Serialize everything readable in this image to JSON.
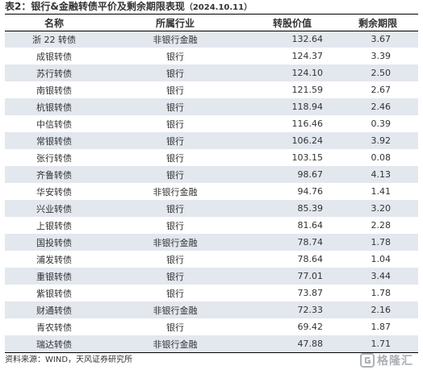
{
  "title": {
    "text": "表2：银行&金融转债平价及剩余期限表现",
    "date": "（2024.10.11）"
  },
  "table": {
    "headers": [
      "名称",
      "所属行业",
      "转股价值",
      "剩余期限"
    ],
    "rows": [
      [
        "浙 22 转债",
        "非银行金融",
        "132.64",
        "3.67"
      ],
      [
        "成银转债",
        "银行",
        "124.37",
        "3.39"
      ],
      [
        "苏行转债",
        "银行",
        "124.10",
        "2.50"
      ],
      [
        "南银转债",
        "银行",
        "121.59",
        "2.67"
      ],
      [
        "杭银转债",
        "银行",
        "118.94",
        "2.46"
      ],
      [
        "中信转债",
        "银行",
        "116.46",
        "0.39"
      ],
      [
        "常银转债",
        "银行",
        "106.24",
        "3.92"
      ],
      [
        "张行转债",
        "银行",
        "103.15",
        "0.08"
      ],
      [
        "齐鲁转债",
        "银行",
        "98.67",
        "4.13"
      ],
      [
        "华安转债",
        "非银行金融",
        "94.76",
        "1.41"
      ],
      [
        "兴业转债",
        "银行",
        "85.39",
        "3.20"
      ],
      [
        "上银转债",
        "银行",
        "81.64",
        "2.28"
      ],
      [
        "国投转债",
        "非银行金融",
        "78.74",
        "1.78"
      ],
      [
        "浦发转债",
        "银行",
        "78.64",
        "1.04"
      ],
      [
        "重银转债",
        "银行",
        "77.01",
        "3.44"
      ],
      [
        "紫银转债",
        "银行",
        "73.87",
        "1.78"
      ],
      [
        "财通转债",
        "非银行金融",
        "72.33",
        "2.16"
      ],
      [
        "青农转债",
        "银行",
        "69.42",
        "1.87"
      ],
      [
        "瑞达转债",
        "非银行金融",
        "47.88",
        "1.71"
      ]
    ]
  },
  "source": "资料来源：WIND，天风证券研究所",
  "watermark": "格隆汇",
  "colors": {
    "stripe": "#e3e7ee",
    "rule": "#000000",
    "text": "#333333"
  }
}
